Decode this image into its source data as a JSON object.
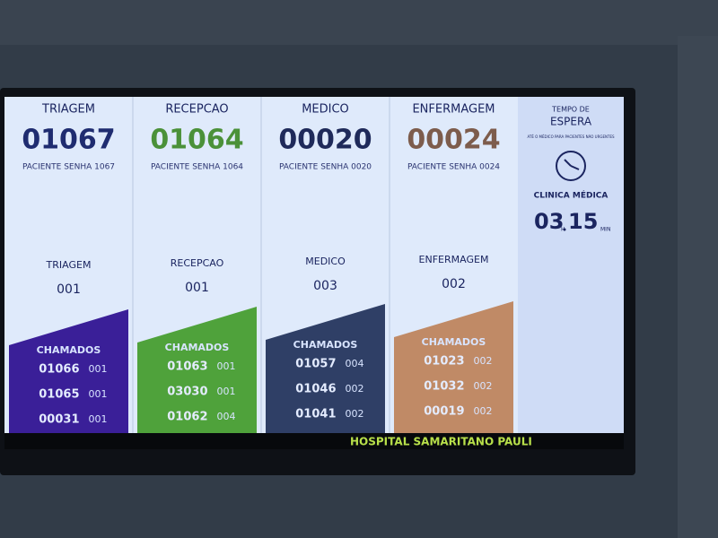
{
  "columns": [
    {
      "title": "TRIAGEM",
      "number": "01067",
      "subtitle": "PACIENTE SENHA 1067",
      "room_label": "TRIAGEM",
      "room": "001",
      "calls_label": "CHAMADOS",
      "calls": [
        [
          "01066",
          "001"
        ],
        [
          "01065",
          "001"
        ],
        [
          "00031",
          "001"
        ]
      ]
    },
    {
      "title": "RECEPCAO",
      "number": "01064",
      "subtitle": "PACIENTE SENHA 1064",
      "room_label": "RECEPCAO",
      "room": "001",
      "calls_label": "CHAMADOS",
      "calls": [
        [
          "01063",
          "001"
        ],
        [
          "03030",
          "001"
        ],
        [
          "01062",
          "004"
        ]
      ]
    },
    {
      "title": "MEDICO",
      "number": "00020",
      "subtitle": "PACIENTE SENHA 0020",
      "room_label": "MEDICO",
      "room": "003",
      "calls_label": "CHAMADOS",
      "calls": [
        [
          "01057",
          "004"
        ],
        [
          "01046",
          "002"
        ],
        [
          "01041",
          "002"
        ]
      ]
    },
    {
      "title": "ENFERMAGEM",
      "number": "00024",
      "subtitle": "PACIENTE SENHA 0024",
      "room_label": "ENFERMAGEM",
      "room": "002",
      "calls_label": "CHAMADOS",
      "calls": [
        [
          "01023",
          "002"
        ],
        [
          "01032",
          "002"
        ],
        [
          "00019",
          "002"
        ]
      ]
    }
  ],
  "wait_panel": {
    "title_line1": "TEMPO DE",
    "title_line2": "ESPERA",
    "note": "ATÉ O MÉDICO PARA PACIENTES NÃO URGENTES",
    "clinic": "CLINICA MÉDICA",
    "hours": "03",
    "hours_unit": "H",
    "minutes": "15",
    "minutes_unit": "MIN"
  },
  "ticker": "HOSPITAL SAMARITANO PAULI"
}
